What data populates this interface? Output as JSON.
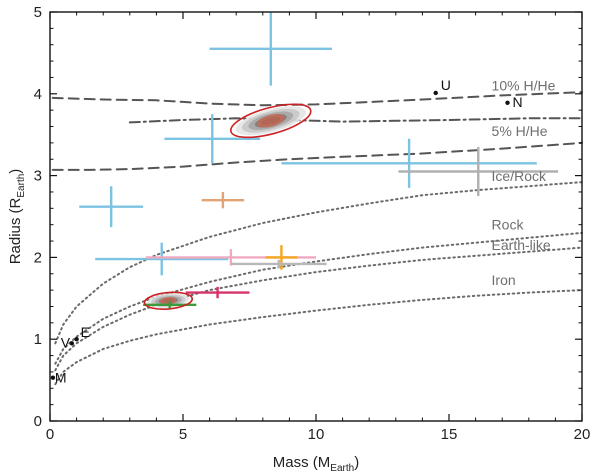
{
  "chart_data": {
    "type": "scatter",
    "title": "",
    "xlabel_main": "Mass (M",
    "xlabel_sub": "Earth",
    "xlabel_end": ")",
    "ylabel_main": "Radius (R",
    "ylabel_sub": "Earth",
    "ylabel_end": ")",
    "xlim": [
      0,
      20
    ],
    "ylim": [
      0,
      5
    ],
    "xticks": [
      0,
      5,
      10,
      15,
      20
    ],
    "yticks": [
      0,
      1,
      2,
      3,
      4,
      5
    ],
    "model_curves": [
      {
        "name": "10% H/He",
        "style": "dashed",
        "color": "#555555",
        "points": [
          [
            0.1,
            3.95
          ],
          [
            2,
            3.93
          ],
          [
            4,
            3.92
          ],
          [
            6,
            3.88
          ],
          [
            8,
            3.86
          ],
          [
            10,
            3.87
          ],
          [
            12,
            3.9
          ],
          [
            14,
            3.93
          ],
          [
            17,
            3.98
          ],
          [
            20,
            4.02
          ]
        ]
      },
      {
        "name": "",
        "style": "dashdot",
        "color": "#555555",
        "points": [
          [
            3,
            3.65
          ],
          [
            5,
            3.68
          ],
          [
            7,
            3.7
          ],
          [
            9,
            3.68
          ],
          [
            11,
            3.66
          ],
          [
            13,
            3.67
          ],
          [
            15,
            3.68
          ],
          [
            18,
            3.7
          ],
          [
            20,
            3.7
          ]
        ]
      },
      {
        "name": "5% H/He",
        "style": "dashed",
        "color": "#555555",
        "points": [
          [
            0.1,
            3.07
          ],
          [
            1.5,
            3.07
          ],
          [
            3,
            3.08
          ],
          [
            5,
            3.11
          ],
          [
            7,
            3.16
          ],
          [
            9,
            3.2
          ],
          [
            11,
            3.23
          ],
          [
            14,
            3.27
          ],
          [
            17,
            3.33
          ],
          [
            20,
            3.4
          ]
        ]
      },
      {
        "name": "Ice/Rock",
        "style": "dotted",
        "color": "#6b6b6b",
        "points": [
          [
            0.2,
            0.95
          ],
          [
            0.5,
            1.18
          ],
          [
            1,
            1.4
          ],
          [
            2,
            1.68
          ],
          [
            3,
            1.88
          ],
          [
            4,
            2.03
          ],
          [
            6,
            2.25
          ],
          [
            8,
            2.42
          ],
          [
            10,
            2.55
          ],
          [
            12,
            2.66
          ],
          [
            14,
            2.76
          ],
          [
            16,
            2.82
          ],
          [
            18,
            2.87
          ],
          [
            20,
            2.92
          ]
        ]
      },
      {
        "name": "Rock",
        "style": "dotted",
        "color": "#6b6b6b",
        "points": [
          [
            0.2,
            0.7
          ],
          [
            0.5,
            0.88
          ],
          [
            1,
            1.03
          ],
          [
            2,
            1.25
          ],
          [
            3,
            1.4
          ],
          [
            4,
            1.52
          ],
          [
            6,
            1.7
          ],
          [
            8,
            1.85
          ],
          [
            10,
            1.95
          ],
          [
            12,
            2.04
          ],
          [
            14,
            2.12
          ],
          [
            16,
            2.18
          ],
          [
            18,
            2.24
          ],
          [
            20,
            2.3
          ]
        ]
      },
      {
        "name": "Earth-like",
        "style": "dotted",
        "color": "#6b6b6b",
        "points": [
          [
            0.2,
            0.62
          ],
          [
            0.5,
            0.8
          ],
          [
            1,
            0.95
          ],
          [
            2,
            1.15
          ],
          [
            3,
            1.3
          ],
          [
            4,
            1.42
          ],
          [
            6,
            1.6
          ],
          [
            8,
            1.72
          ],
          [
            10,
            1.82
          ],
          [
            12,
            1.9
          ],
          [
            14,
            1.97
          ],
          [
            16,
            2.02
          ],
          [
            18,
            2.07
          ],
          [
            20,
            2.12
          ]
        ]
      },
      {
        "name": "Iron",
        "style": "dotted",
        "color": "#6b6b6b",
        "points": [
          [
            0.2,
            0.45
          ],
          [
            0.5,
            0.6
          ],
          [
            1,
            0.72
          ],
          [
            2,
            0.88
          ],
          [
            3,
            0.98
          ],
          [
            4,
            1.06
          ],
          [
            6,
            1.18
          ],
          [
            8,
            1.27
          ],
          [
            10,
            1.35
          ],
          [
            12,
            1.42
          ],
          [
            14,
            1.48
          ],
          [
            16,
            1.53
          ],
          [
            18,
            1.57
          ],
          [
            20,
            1.6
          ]
        ]
      }
    ],
    "model_labels": [
      {
        "text": "10% H/He",
        "x": 16.6,
        "y": 3.98
      },
      {
        "text": "5% H/He",
        "x": 16.6,
        "y": 3.42
      },
      {
        "text": "Ice/Rock",
        "x": 16.6,
        "y": 2.87
      },
      {
        "text": "Rock",
        "x": 16.6,
        "y": 2.28
      },
      {
        "text": "Earth-like",
        "x": 16.6,
        "y": 2.03
      },
      {
        "text": "Iron",
        "x": 16.6,
        "y": 1.6
      }
    ],
    "planets_with_errors": [
      {
        "x": 8.3,
        "y": 4.55,
        "xerr": 2.3,
        "yerr": 0.45,
        "color": "#7cc3e3"
      },
      {
        "x": 6.1,
        "y": 3.45,
        "xerr": 1.8,
        "yerr": 0.3,
        "color": "#7cc3e3"
      },
      {
        "x": 2.3,
        "y": 2.62,
        "xerr": 1.2,
        "yerr": 0.25,
        "color": "#7cc3e3"
      },
      {
        "x": 13.5,
        "y": 3.15,
        "xerr": 4.8,
        "yerr": 0.3,
        "color": "#7cc3e3"
      },
      {
        "x": 4.2,
        "y": 1.98,
        "xerr": 2.5,
        "yerr": 0.2,
        "color": "#7cc3e3"
      },
      {
        "x": 16.1,
        "y": 3.05,
        "xerr": 3.0,
        "yerr": 0.3,
        "color": "#b0b0b0"
      },
      {
        "x": 6.5,
        "y": 2.7,
        "xerr": 0.8,
        "yerr": 0.1,
        "color": "#e2a375"
      },
      {
        "x": 6.8,
        "y": 2.0,
        "xerr": 3.2,
        "yerr": 0.1,
        "color": "#f0aac0"
      },
      {
        "x": 8.7,
        "y": 2.0,
        "xerr": 0.6,
        "yerr": 0.15,
        "color": "#f2a81e"
      },
      {
        "x": 8.6,
        "y": 1.92,
        "xerr": 1.8,
        "yerr": 0.05,
        "color": "#b8b8b8"
      },
      {
        "x": 6.3,
        "y": 1.57,
        "xerr": 1.2,
        "yerr": 0.07,
        "color": "#d6336c"
      },
      {
        "x": 4.5,
        "y": 1.42,
        "xerr": 1.0,
        "yerr": 0.04,
        "color": "#3c9a3c"
      }
    ],
    "posterior_ellipses": [
      {
        "cx": 8.3,
        "cy": 3.67,
        "rx": 1.55,
        "ry": 0.16,
        "angle_deg": -15
      },
      {
        "cx": 4.45,
        "cy": 1.47,
        "rx": 0.9,
        "ry": 0.1,
        "angle_deg": -5
      }
    ],
    "solar_system": [
      {
        "label": "U",
        "x": 14.5,
        "y": 4.01
      },
      {
        "label": "N",
        "x": 17.2,
        "y": 3.89
      },
      {
        "label": "V",
        "x": 0.82,
        "y": 0.95
      },
      {
        "label": "E",
        "x": 1.0,
        "y": 1.0
      },
      {
        "label": "M",
        "x": 0.11,
        "y": 0.53
      }
    ]
  }
}
